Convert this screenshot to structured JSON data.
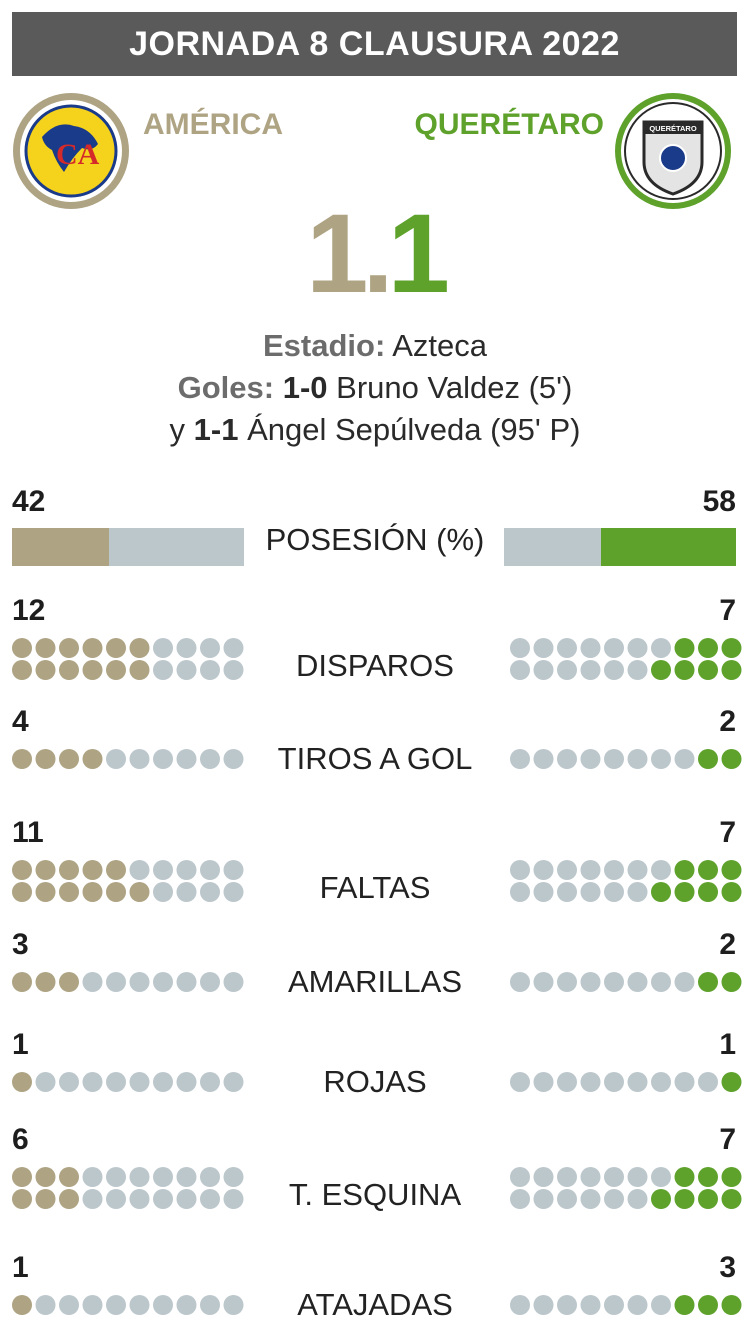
{
  "header": {
    "title": "JORNADA 8 CLAUSURA 2022"
  },
  "teams": {
    "home": {
      "name": "AMÉRICA",
      "color": "#aea383",
      "crest_text": "CA"
    },
    "away": {
      "name": "QUERÉTARO",
      "color": "#5ea22c",
      "crest_text": "QUERÉTARO"
    }
  },
  "score": {
    "home": "1",
    "separator": ".",
    "away": "1"
  },
  "match_info": {
    "stadium_label": "Estadio:",
    "stadium": "Azteca",
    "goals_label": "Goles:",
    "goal1_score": "1-0",
    "goal1_text": "Bruno Valdez (5')",
    "goal2_prefix": "y",
    "goal2_score": "1-1",
    "goal2_text": "Ángel Sepúlveda (95' P)"
  },
  "colors": {
    "neutral": "#bcc7cc",
    "home": "#aea383",
    "away": "#5ea22c"
  },
  "chart_data": {
    "type": "bar",
    "title": "",
    "series": [
      {
        "name": "AMÉRICA"
      },
      {
        "name": "QUERÉTARO"
      }
    ],
    "possession": {
      "label": "POSESIÓN (%)",
      "home": 42,
      "away": 58
    },
    "stats": [
      {
        "label": "DISPAROS",
        "home": 12,
        "away": 7,
        "home_display": "12",
        "away_display": "7"
      },
      {
        "label": "TIROS A GOL",
        "home": 4,
        "away": 2,
        "home_display": "4",
        "away_display": "2"
      },
      {
        "label": "FALTAS",
        "home": 11,
        "away": 7,
        "home_display": "11",
        "away_display": "7"
      },
      {
        "label": "AMARILLAS",
        "home": 3,
        "away": 2,
        "home_display": "3",
        "away_display": "2"
      },
      {
        "label": "ROJAS",
        "home": 1,
        "away": 1,
        "home_display": "1",
        "away_display": "1"
      },
      {
        "label": "T. ESQUINA",
        "home": 6,
        "away": 7,
        "home_display": "6",
        "away_display": "7"
      },
      {
        "label": "ATAJADAS",
        "home": 1,
        "away": 3,
        "home_display": "1",
        "away_display": "3"
      }
    ]
  }
}
